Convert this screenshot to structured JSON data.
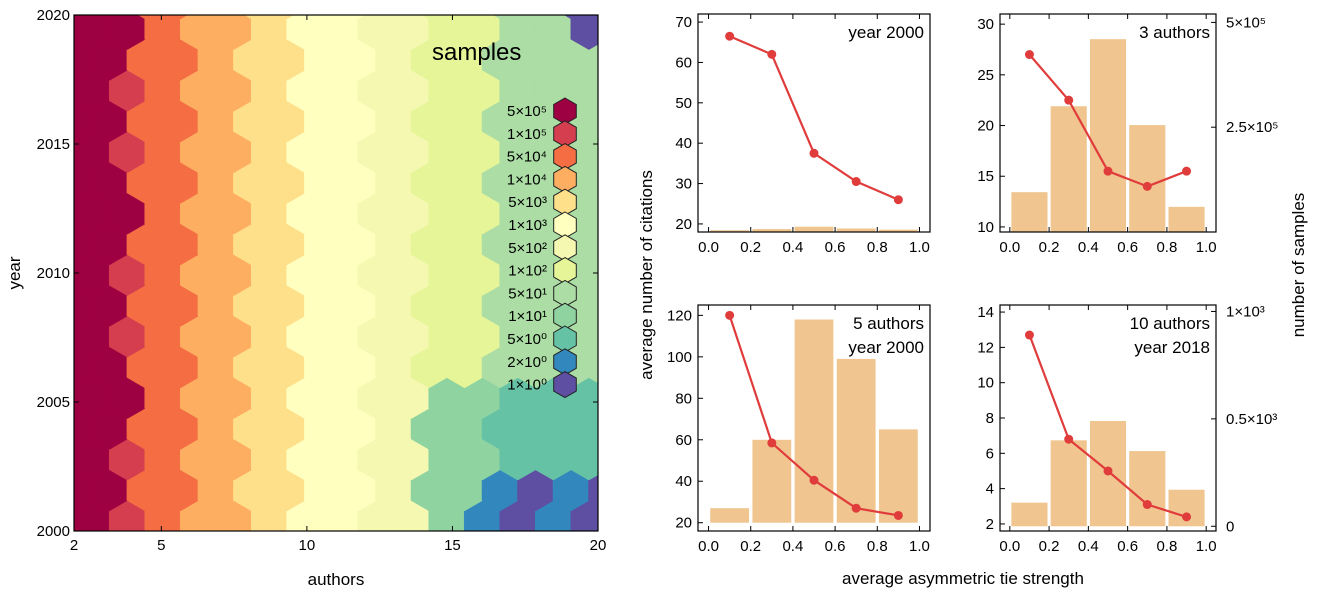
{
  "chart_data": [
    {
      "type": "heatmap",
      "subtype": "hexbin",
      "xlabel": "authors",
      "ylabel": "year",
      "xlim": [
        2,
        20
      ],
      "ylim": [
        2000,
        2020
      ],
      "xticks": [
        "2",
        "5",
        "10",
        "15",
        "20"
      ],
      "yticks": [
        "2000",
        "2005",
        "2010",
        "2015",
        "2020"
      ],
      "legend_title": "samples",
      "legend_position": "top-right",
      "color_scale": {
        "labels": [
          "5×10⁵",
          "1×10⁵",
          "5×10⁴",
          "1×10⁴",
          "5×10³",
          "1×10³",
          "5×10²",
          "1×10²",
          "5×10¹",
          "1×10¹",
          "5×10⁰",
          "2×10⁰",
          "1×10⁰"
        ],
        "colors": [
          "#9e0142",
          "#d53e4f",
          "#f46d43",
          "#fdae61",
          "#fee08b",
          "#ffffbf",
          "#f5f8b0",
          "#e6f598",
          "#abdda4",
          "#8fd3a0",
          "#66c2a5",
          "#3288bd",
          "#5e4fa2"
        ]
      },
      "bands": [
        {
          "authors_max": 3.5,
          "level": 0
        },
        {
          "authors_max": 4.2,
          "level": 1
        },
        {
          "authors_max": 6.2,
          "level": 2
        },
        {
          "authors_max": 7.8,
          "level": 3
        },
        {
          "authors_max": 9.8,
          "level": 4
        },
        {
          "authors_max": 12.0,
          "level": 5
        },
        {
          "authors_max": 14.0,
          "level": 6
        },
        {
          "authors_max": 16.5,
          "level": 7
        },
        {
          "authors_max": 20.0,
          "level": 8
        }
      ]
    },
    {
      "type": "bar",
      "overlay": "line",
      "annotation": [
        "year 2000"
      ],
      "x": [
        0.1,
        0.3,
        0.5,
        0.7,
        0.9
      ],
      "bar_values": [
        3000,
        5000,
        9000,
        6000,
        4000
      ],
      "line_values": [
        66.5,
        62,
        37.5,
        30.5,
        26
      ],
      "xlim": [
        -0.05,
        1.05
      ],
      "xticks": [
        "0.0",
        "0.2",
        "0.4",
        "0.6",
        "0.8",
        "1.0"
      ],
      "ylim": [
        18,
        72
      ],
      "yticks": [
        20,
        30,
        40,
        50,
        60,
        70
      ],
      "y2lim": [
        0,
        370000
      ],
      "y2ticks": []
    },
    {
      "type": "bar",
      "overlay": "line",
      "annotation": [
        "3 authors"
      ],
      "x": [
        0.1,
        0.3,
        0.5,
        0.7,
        0.9
      ],
      "bar_values": [
        95000,
        300000,
        460000,
        255000,
        60000
      ],
      "line_values": [
        27,
        22.5,
        15.5,
        14,
        15.5
      ],
      "xlim": [
        -0.05,
        1.05
      ],
      "xticks": [
        "0.0",
        "0.2",
        "0.4",
        "0.6",
        "0.8",
        "1.0"
      ],
      "ylim": [
        9.5,
        31
      ],
      "yticks": [
        10,
        15,
        20,
        25,
        30
      ],
      "y2lim": [
        0,
        520000
      ],
      "y2ticks": [
        {
          "value": 250000,
          "label": "2.5×10⁵"
        },
        {
          "value": 500000,
          "label": "5×10⁵"
        }
      ]
    },
    {
      "type": "bar",
      "overlay": "line",
      "annotation": [
        "5 authors",
        "year 2000"
      ],
      "x": [
        0.1,
        0.3,
        0.5,
        0.7,
        0.9
      ],
      "bar_values": [
        7,
        40,
        98,
        79,
        45
      ],
      "line_values": [
        120,
        58.5,
        40.5,
        27,
        23.5
      ],
      "xlim": [
        -0.05,
        1.05
      ],
      "xticks": [
        "0.0",
        "0.2",
        "0.4",
        "0.6",
        "0.8",
        "1.0"
      ],
      "ylim": [
        16,
        125
      ],
      "yticks": [
        20,
        40,
        60,
        80,
        100,
        120
      ],
      "y2lim": [
        -4,
        105
      ],
      "y2ticks": []
    },
    {
      "type": "bar",
      "overlay": "line",
      "annotation": [
        "10 authors",
        "year 2018"
      ],
      "x": [
        0.1,
        0.3,
        0.5,
        0.7,
        0.9
      ],
      "bar_values": [
        110,
        400,
        490,
        350,
        170
      ],
      "line_values": [
        12.7,
        6.8,
        5,
        3.1,
        2.4
      ],
      "xlim": [
        -0.05,
        1.05
      ],
      "xticks": [
        "0.0",
        "0.2",
        "0.4",
        "0.6",
        "0.8",
        "1.0"
      ],
      "ylim": [
        1.6,
        14.4
      ],
      "yticks": [
        2,
        4,
        6,
        8,
        10,
        12,
        14
      ],
      "y2lim": [
        -22,
        1030
      ],
      "y2ticks": [
        {
          "value": 0,
          "label": "0"
        },
        {
          "value": 500,
          "label": "0.5×10³"
        },
        {
          "value": 1000,
          "label": "1×10³"
        }
      ]
    }
  ],
  "shared_labels": {
    "xlabel": "average asymmetric tie strength",
    "ylabel_left": "average number of citations",
    "ylabel_right": "number of samples"
  },
  "colors": {
    "bar": "#f0c58f",
    "line": "#e03c3c"
  }
}
